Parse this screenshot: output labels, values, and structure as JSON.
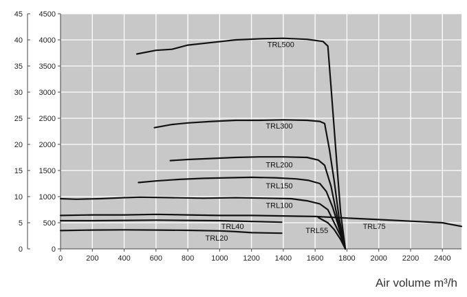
{
  "chart_data": {
    "type": "line",
    "title": "",
    "xlabel": "Air volume m³/h",
    "ylabel": "",
    "xlim": [
      0,
      2520
    ],
    "ylim": [
      0,
      4500
    ],
    "y2lim": [
      0,
      45
    ],
    "grid": true,
    "background": "#c8c8c8",
    "x_ticks": [
      "0",
      "200",
      "400",
      "600",
      "800",
      "1000",
      "1200",
      "1400",
      "1600",
      "1800",
      "2000",
      "2200",
      "2400"
    ],
    "y_ticks": [
      "0",
      "500",
      "1000",
      "1500",
      "2000",
      "2500",
      "3000",
      "3500",
      "4000",
      "4500"
    ],
    "y2_ticks": [
      "0",
      "5",
      "10",
      "15",
      "20",
      "25",
      "30",
      "35",
      "40",
      "45"
    ],
    "series": [
      {
        "name": "TRL500",
        "x": [
          480,
          600,
          700,
          800,
          950,
          1100,
          1250,
          1400,
          1550,
          1650,
          1680,
          1700,
          1720,
          1740,
          1760,
          1790
        ],
        "y": [
          3730,
          3800,
          3820,
          3900,
          3950,
          4000,
          4020,
          4030,
          4010,
          3970,
          3880,
          3100,
          2300,
          1500,
          700,
          0
        ]
      },
      {
        "name": "TRL300",
        "x": [
          590,
          700,
          800,
          950,
          1100,
          1250,
          1400,
          1550,
          1630,
          1660,
          1690,
          1720,
          1750,
          1790
        ],
        "y": [
          2320,
          2380,
          2410,
          2440,
          2460,
          2460,
          2470,
          2460,
          2440,
          2400,
          1900,
          1300,
          600,
          0
        ]
      },
      {
        "name": "TRL200",
        "x": [
          690,
          800,
          950,
          1100,
          1250,
          1400,
          1550,
          1620,
          1660,
          1700,
          1740,
          1790
        ],
        "y": [
          1690,
          1710,
          1730,
          1750,
          1760,
          1760,
          1750,
          1700,
          1600,
          1200,
          600,
          0
        ]
      },
      {
        "name": "TRL150",
        "x": [
          490,
          600,
          750,
          900,
          1050,
          1200,
          1350,
          1480,
          1560,
          1630,
          1670,
          1710,
          1750,
          1790
        ],
        "y": [
          1270,
          1300,
          1330,
          1350,
          1360,
          1370,
          1360,
          1340,
          1310,
          1250,
          1100,
          800,
          400,
          0
        ]
      },
      {
        "name": "TRL100",
        "x": [
          0,
          100,
          250,
          400,
          500,
          700,
          900,
          1100,
          1300,
          1450,
          1550,
          1630,
          1680,
          1720,
          1760,
          1790
        ],
        "y": [
          960,
          950,
          960,
          980,
          990,
          980,
          970,
          980,
          970,
          960,
          920,
          860,
          750,
          500,
          250,
          0
        ]
      },
      {
        "name": "TRL75",
        "x": [
          0,
          200,
          400,
          600,
          800,
          1000,
          1200,
          1400,
          1600,
          1800,
          2000,
          2200,
          2400,
          2520
        ],
        "y": [
          640,
          650,
          650,
          660,
          650,
          640,
          640,
          630,
          620,
          590,
          560,
          530,
          500,
          430
        ]
      },
      {
        "name": "TRL55",
        "x": [
          1620,
          1680,
          1720,
          1760,
          1790
        ],
        "y": [
          600,
          500,
          370,
          180,
          0
        ]
      },
      {
        "name": "TRL40",
        "x": [
          0,
          200,
          400,
          600,
          800,
          1000,
          1200,
          1390
        ],
        "y": [
          540,
          540,
          545,
          550,
          545,
          540,
          525,
          510
        ]
      },
      {
        "name": "TRL20",
        "x": [
          0,
          200,
          400,
          600,
          800,
          1000,
          1100,
          1200,
          1390
        ],
        "y": [
          350,
          360,
          365,
          360,
          355,
          345,
          330,
          310,
          300
        ]
      }
    ],
    "curve_labels": [
      {
        "name": "TRL500",
        "x": 1300,
        "y": 3860
      },
      {
        "name": "TRL300",
        "x": 1290,
        "y": 2300
      },
      {
        "name": "TRL200",
        "x": 1290,
        "y": 1560
      },
      {
        "name": "TRL150",
        "x": 1290,
        "y": 1160
      },
      {
        "name": "TRL100",
        "x": 1290,
        "y": 780
      },
      {
        "name": "TRL75",
        "x": 1900,
        "y": 380
      },
      {
        "name": "TRL55",
        "x": 1540,
        "y": 300
      },
      {
        "name": "TRL40",
        "x": 1010,
        "y": 380
      },
      {
        "name": "TRL20",
        "x": 910,
        "y": 160
      }
    ]
  }
}
